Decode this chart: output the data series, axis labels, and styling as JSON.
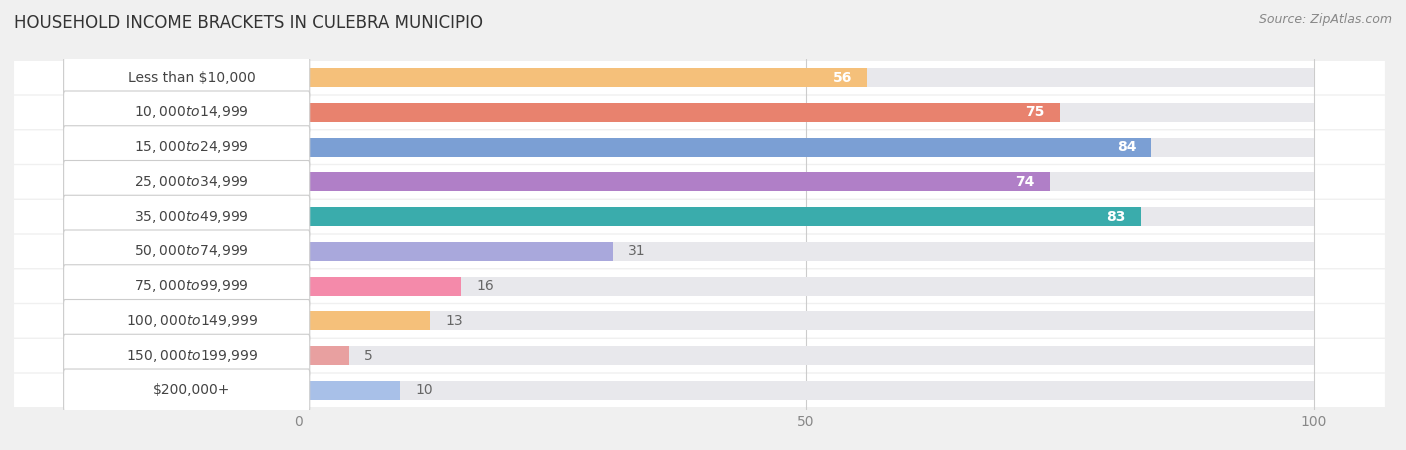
{
  "title": "HOUSEHOLD INCOME BRACKETS IN CULEBRA MUNICIPIO",
  "source": "Source: ZipAtlas.com",
  "categories": [
    "Less than $10,000",
    "$10,000 to $14,999",
    "$15,000 to $24,999",
    "$25,000 to $34,999",
    "$35,000 to $49,999",
    "$50,000 to $74,999",
    "$75,000 to $99,999",
    "$100,000 to $149,999",
    "$150,000 to $199,999",
    "$200,000+"
  ],
  "values": [
    56,
    75,
    84,
    74,
    83,
    31,
    16,
    13,
    5,
    10
  ],
  "bar_colors": [
    "#f5c07a",
    "#e8826e",
    "#7b9fd4",
    "#b07fc7",
    "#3aacac",
    "#a9a8dc",
    "#f48aaa",
    "#f5c07a",
    "#e8a0a0",
    "#a8c0e8"
  ],
  "bar_bg_colors": [
    "#ede8e0",
    "#ede8e0",
    "#ede8e0",
    "#ede8e0",
    "#ede8e0",
    "#ede8e0",
    "#ede8e0",
    "#ede8e0",
    "#ede8e0",
    "#ede8e0"
  ],
  "xlim": [
    0,
    100
  ],
  "xticks": [
    0,
    50,
    100
  ],
  "title_fontsize": 12,
  "source_fontsize": 9,
  "label_fontsize": 10,
  "value_fontsize": 10,
  "background_color": "#f0f0f0",
  "row_bg_color": "#ffffff",
  "bar_height": 0.55,
  "value_threshold": 40
}
